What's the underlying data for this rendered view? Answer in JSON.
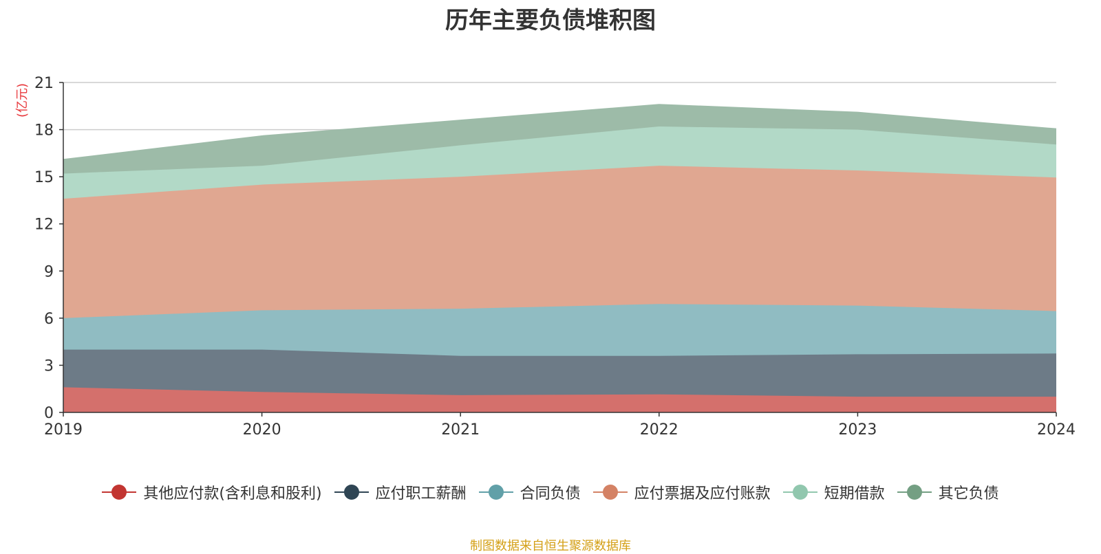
{
  "chart_data": {
    "type": "area",
    "stacked": true,
    "title": "历年主要负债堆积图",
    "ylabel": "(亿元)",
    "xlabel": "",
    "x": [
      "2019",
      "2020",
      "2021",
      "2022",
      "2023",
      "2024"
    ],
    "yticks": [
      "0",
      "3",
      "6",
      "9",
      "12",
      "15",
      "18",
      "21"
    ],
    "ylim": [
      0,
      21
    ],
    "grid": true,
    "legend_position": "bottom",
    "series": [
      {
        "name": "其他应付款(含利息和股利)",
        "color": "#c23531",
        "fill": "#d4706c",
        "values": [
          1.6,
          1.3,
          1.1,
          1.15,
          1.0,
          1.0
        ]
      },
      {
        "name": "应付职工薪酬",
        "color": "#2f4554",
        "fill": "#6d7b87",
        "values": [
          2.4,
          2.7,
          2.5,
          2.45,
          2.7,
          2.75
        ]
      },
      {
        "name": "合同负债",
        "color": "#61a0a8",
        "fill": "#90bcc2",
        "values": [
          2.0,
          2.5,
          3.0,
          3.3,
          3.1,
          2.7
        ]
      },
      {
        "name": "应付票据及应付账款",
        "color": "#d48265",
        "fill": "#e0a791",
        "values": [
          7.6,
          8.0,
          8.4,
          8.8,
          8.6,
          8.5
        ]
      },
      {
        "name": "短期借款",
        "color": "#91c7ae",
        "fill": "#b2d9c7",
        "values": [
          1.6,
          1.2,
          2.0,
          2.5,
          2.6,
          2.1
        ]
      },
      {
        "name": "其它负债",
        "color": "#749f83",
        "fill": "#9dbba8",
        "values": [
          0.9,
          1.9,
          1.6,
          1.4,
          1.1,
          1.0
        ]
      }
    ]
  },
  "source_note": "制图数据来自恒生聚源数据库"
}
